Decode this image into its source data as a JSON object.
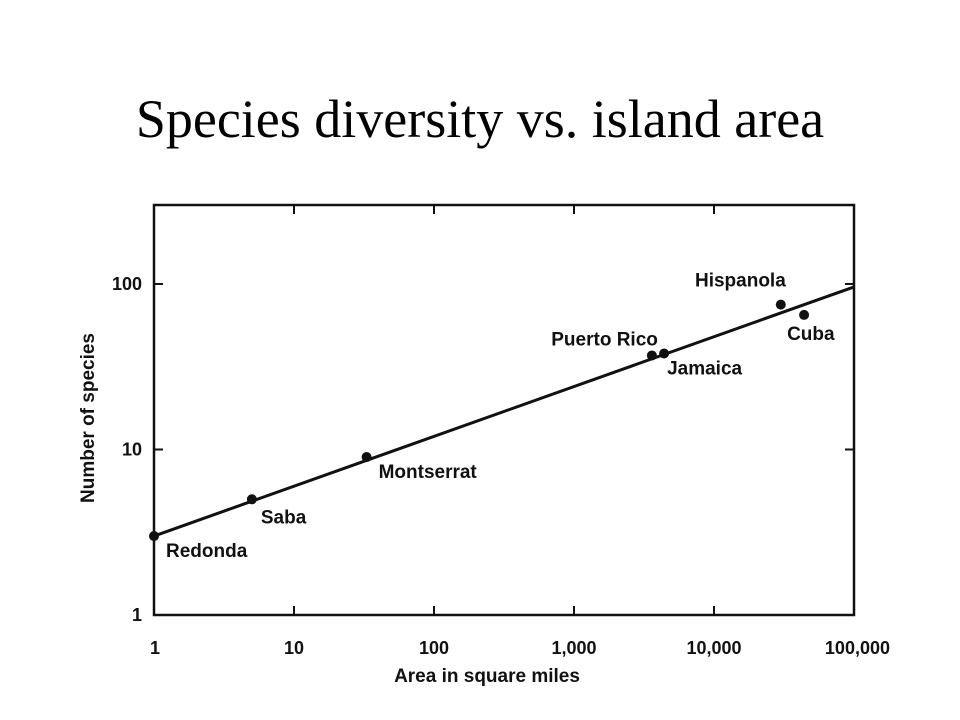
{
  "slide": {
    "title": "Species diversity vs. island area"
  },
  "chart_data": {
    "type": "scatter",
    "xscale": "log",
    "yscale": "log",
    "xlim": [
      1,
      100000
    ],
    "ylim": [
      1,
      300
    ],
    "xlabel": "Area in square miles",
    "ylabel": "Number of species",
    "xticks": [
      1,
      10,
      100,
      1000,
      10000,
      100000
    ],
    "xtick_labels": [
      "1",
      "10",
      "100",
      "1,000",
      "10,000",
      "100,000"
    ],
    "yticks": [
      1,
      10,
      100
    ],
    "ytick_labels": [
      "1",
      "10",
      "100"
    ],
    "grid": false,
    "points": [
      {
        "label": "Redonda",
        "x": 1,
        "y": 3
      },
      {
        "label": "Saba",
        "x": 5,
        "y": 5
      },
      {
        "label": "Montserrat",
        "x": 33,
        "y": 9
      },
      {
        "label": "Puerto Rico",
        "x": 3600,
        "y": 37
      },
      {
        "label": "Jamaica",
        "x": 4400,
        "y": 38
      },
      {
        "label": "Hispanola",
        "x": 30000,
        "y": 75
      },
      {
        "label": "Cuba",
        "x": 44000,
        "y": 65
      }
    ],
    "fit_line": {
      "x": [
        1,
        100000
      ],
      "y": [
        3,
        96
      ]
    },
    "line_color": "#111111"
  }
}
